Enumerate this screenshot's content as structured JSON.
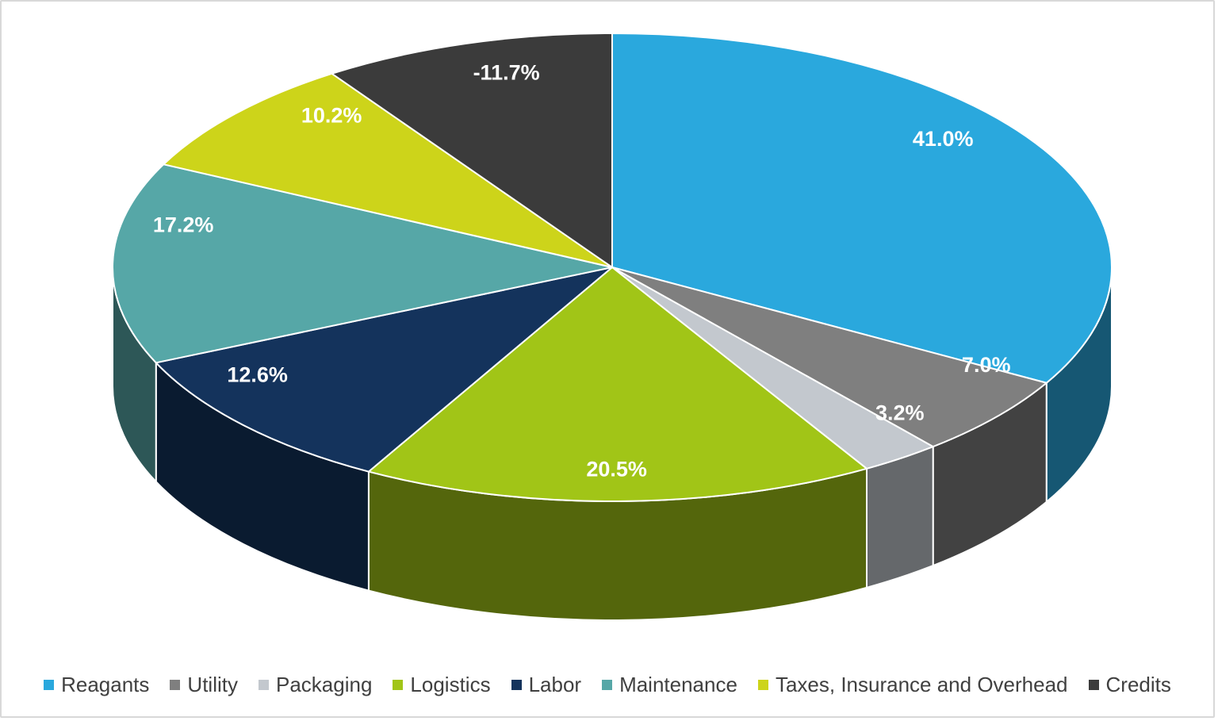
{
  "chart_data": {
    "type": "pie",
    "style": "3d-exploded-none",
    "title": "",
    "legend_position": "bottom",
    "background_color": "#FFFFFF",
    "frame_border_color": "#D8D8D8",
    "legend_text_color": "#404040",
    "data_label_color": "#FFFFFF",
    "slice_separator_color": "#FFFFFF",
    "slices": [
      {
        "label": "Reagants",
        "value": 41.0,
        "display": "41.0%",
        "color": "#2AA8DD"
      },
      {
        "label": "Utility",
        "value": 7.0,
        "display": "7.0%",
        "color": "#7F7F7F"
      },
      {
        "label": "Packaging",
        "value": 3.2,
        "display": "3.2%",
        "color": "#C3C8CE"
      },
      {
        "label": "Logistics",
        "value": 20.5,
        "display": "20.5%",
        "color": "#A1C517"
      },
      {
        "label": "Labor",
        "value": 12.6,
        "display": "12.6%",
        "color": "#14335C"
      },
      {
        "label": "Maintenance",
        "value": 17.2,
        "display": "17.2%",
        "color": "#56A7A7"
      },
      {
        "label": "Taxes, Insurance and Overhead",
        "value": 10.2,
        "display": "10.2%",
        "color": "#CDD41A"
      },
      {
        "label": "Credits",
        "value": -11.7,
        "display": "-11.7%",
        "color": "#3B3B3B"
      }
    ]
  }
}
